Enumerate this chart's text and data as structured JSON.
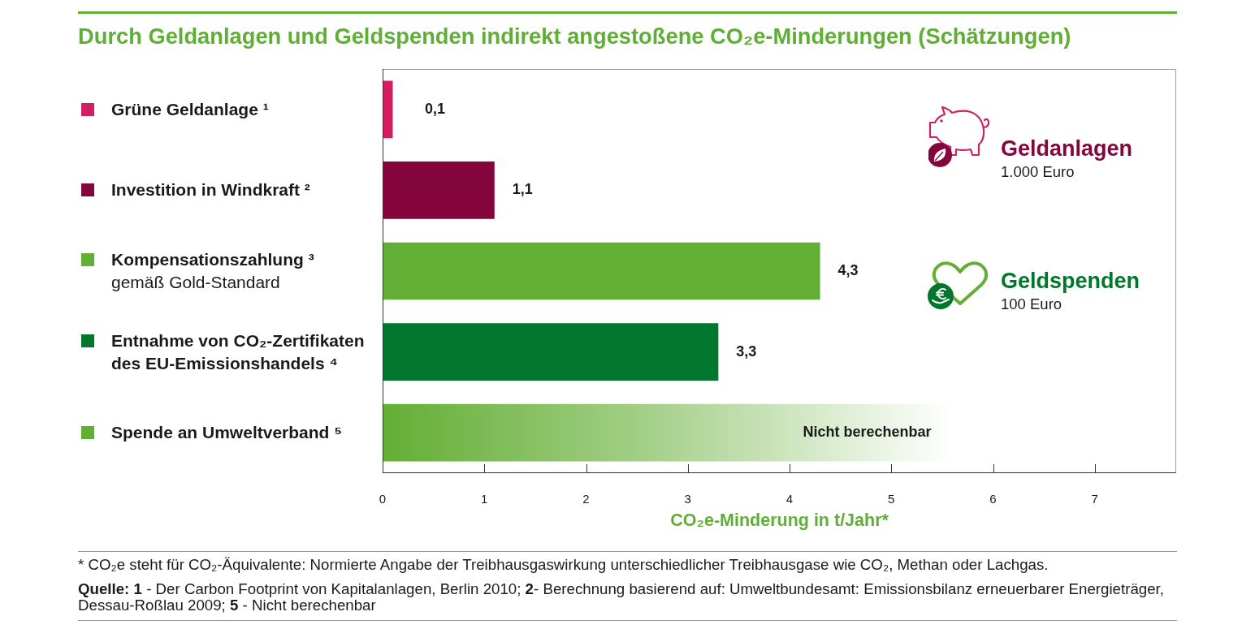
{
  "chart_data": {
    "type": "bar",
    "orientation": "horizontal",
    "title": "Durch Geldanlagen und Geldspenden indirekt angestoßene CO₂e-Minderungen (Schätzungen)",
    "categories": [
      "Grüne Geldanlage ¹",
      "Investition in Windkraft ²",
      "Kompensationszahlung ³\ngemäß Gold-Standard",
      "Entnahme von CO₂-Zertifikaten\ndes EU-Emissionshandels ⁴",
      "Spende an Umweltverband ⁵"
    ],
    "values": [
      0.1,
      1.1,
      4.3,
      3.3,
      null
    ],
    "colors": [
      "#d21f5f",
      "#85063c",
      "#63ae34",
      "#00772c",
      "#63ae34"
    ],
    "value_labels": [
      "0,1",
      "1,1",
      "4,3",
      "3,3",
      "Nicht berechenbar"
    ],
    "bands": [
      {
        "axis": "x",
        "from": 0,
        "to": 5.6,
        "color": "#63ae34"
      }
    ],
    "xlim": [
      0,
      7.8
    ],
    "xticks": [
      0,
      1,
      2,
      3,
      4,
      5,
      6,
      7
    ],
    "xlabel": "CO₂e-Minderung in t/Jahr*",
    "annotations": [
      "Geldanlagen",
      "1.000 Euro",
      "Geldspenden",
      "100 Euro",
      "* CO₂e steht für CO₂-Äquivalente: Normierte Angabe der Treibhausgaswirkung unterschiedlicher Treibhausgase wie CO₂, Methan oder Lachgas.",
      "Quelle: 1 - Der Carbon Footprint von Kapitalanlagen, Berlin 2010; 2- Berechnung basierend auf: Umweltbundesamt: Emissionsbilanz erneuerbarer Energieträger, Dessau-Roßlau 2009; 5 - Nicht berechenbar"
    ]
  }
}
